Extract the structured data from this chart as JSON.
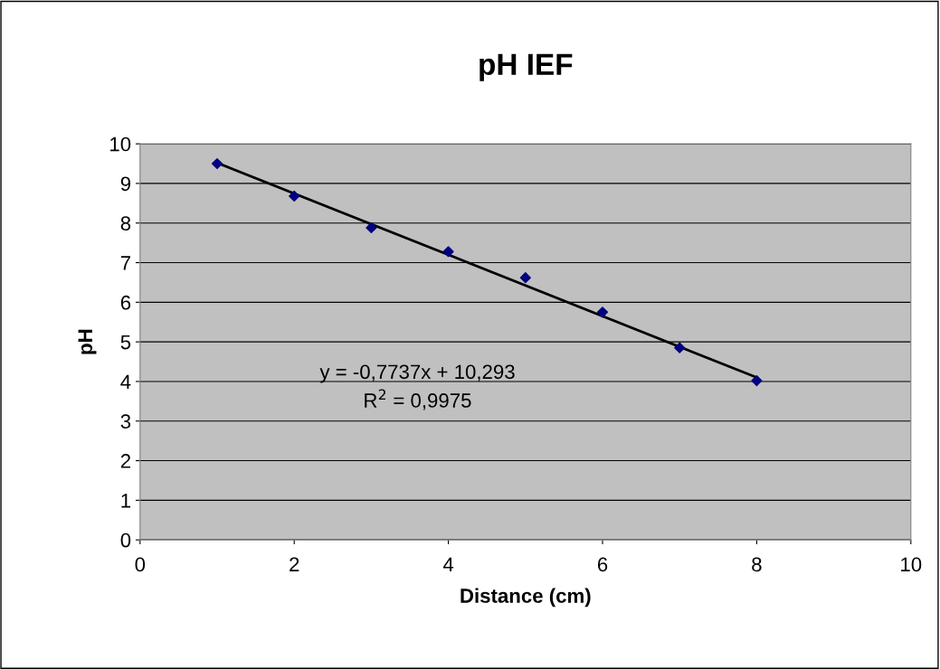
{
  "chart_data": {
    "type": "scatter",
    "title": "pH IEF",
    "xlabel": "Distance (cm)",
    "ylabel": "pH",
    "x": [
      1,
      2,
      3,
      4,
      5,
      6,
      7,
      8
    ],
    "series": [
      {
        "color": "#000080",
        "values": [
          9.5,
          8.68,
          7.88,
          7.28,
          6.62,
          5.75,
          4.85,
          4.02
        ],
        "marker": "diamond"
      },
      {
        "type": "line",
        "color": "#000000",
        "x": [
          1,
          8
        ],
        "values": [
          9.52,
          4.1
        ],
        "marker": "none",
        "line_style": "solid"
      }
    ],
    "xlim": [
      0,
      10
    ],
    "xticks": [
      0,
      2,
      4,
      6,
      8,
      10
    ],
    "ylim": [
      0,
      10
    ],
    "yticks": [
      0,
      1,
      2,
      3,
      4,
      5,
      6,
      7,
      8,
      9,
      10
    ],
    "grid": "y",
    "legend": false,
    "annotations": [
      "y = -0,7737x + 10,293",
      "R$^{2}$ = 0,9975"
    ]
  }
}
